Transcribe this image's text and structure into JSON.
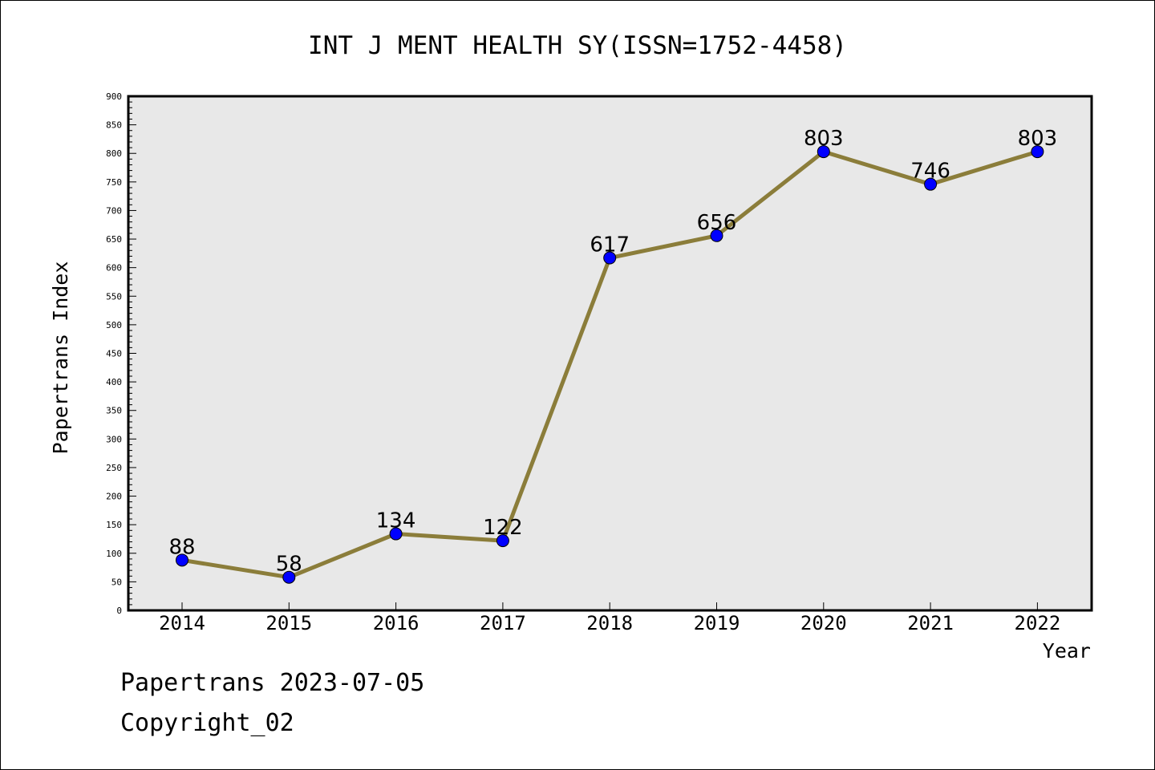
{
  "chart_data": {
    "type": "line",
    "title": "INT J MENT HEALTH SY(ISSN=1752-4458)",
    "xlabel": "Year",
    "ylabel": "Papertrans Index",
    "categories": [
      "2014",
      "2015",
      "2016",
      "2017",
      "2018",
      "2019",
      "2020",
      "2021",
      "2022"
    ],
    "values": [
      88,
      58,
      134,
      122,
      617,
      656,
      803,
      746,
      803
    ],
    "ylim": [
      0,
      900
    ],
    "yticks": [
      0,
      50,
      100,
      150,
      200,
      250,
      300,
      350,
      400,
      450,
      500,
      550,
      600,
      650,
      700,
      750,
      800,
      850,
      900
    ],
    "grid": false,
    "legend": "none",
    "colors": {
      "line": "#8b7d3a",
      "marker": "#0000ff",
      "plot_background": "#e8e8e8"
    }
  },
  "footer": {
    "line1": "Papertrans 2023-07-05",
    "line2": "Copyright_02"
  }
}
